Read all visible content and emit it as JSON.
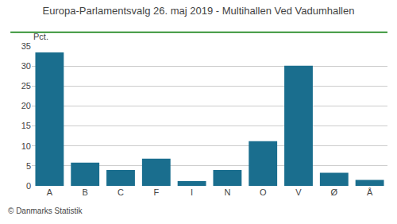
{
  "chart_data": {
    "type": "bar",
    "title": "Europa-Parlamentsvalg 26. maj 2019 - Multihallen Ved Vadumhallen",
    "ylabel": "Pct.",
    "footer": "© Danmarks Statistik",
    "categories": [
      "A",
      "B",
      "C",
      "F",
      "I",
      "N",
      "O",
      "V",
      "Ø",
      "Å"
    ],
    "values": [
      33.4,
      5.8,
      4.0,
      6.8,
      1.2,
      4.0,
      11.2,
      30.1,
      3.3,
      1.5
    ],
    "color": "#1a6e8e",
    "ylim": [
      0,
      35
    ],
    "yticks": [
      0,
      5,
      10,
      15,
      20,
      25,
      30,
      35
    ],
    "grid": true
  }
}
